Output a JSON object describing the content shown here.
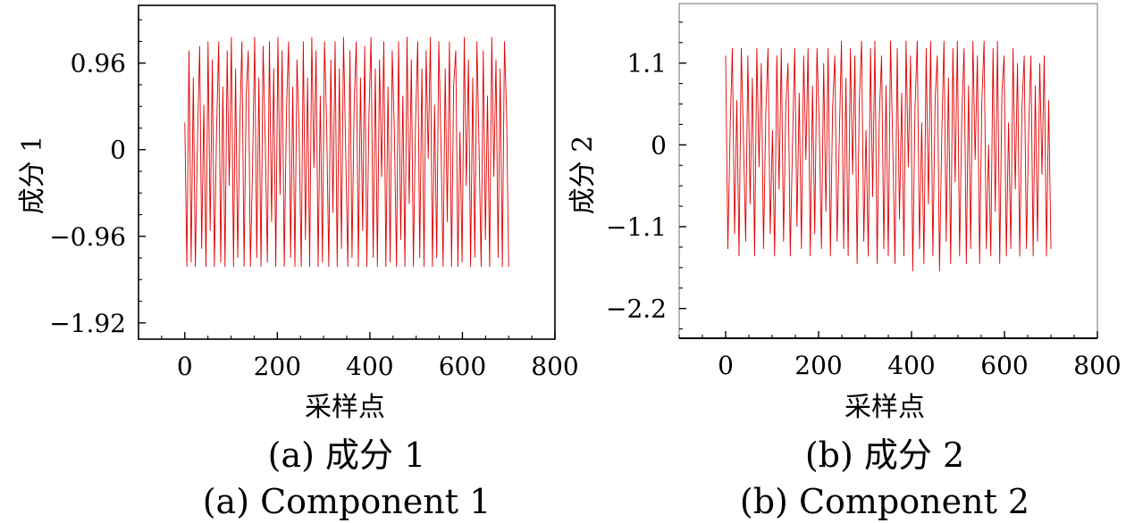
{
  "figure": {
    "panels": [
      {
        "caption_cn": "(a) 成分 1",
        "caption_en": "(a) Component 1"
      },
      {
        "caption_cn": "(b) 成分 2",
        "caption_en": "(b) Component 2"
      }
    ]
  },
  "chart_data": [
    {
      "type": "line",
      "title": "",
      "xlabel": "采样点",
      "ylabel": "成分 1",
      "xlim": [
        -100,
        800
      ],
      "ylim": [
        -2.1,
        1.6
      ],
      "x_ticks": [
        0,
        200,
        400,
        600,
        800
      ],
      "x_tick_labels": [
        "0",
        "200",
        "400",
        "600",
        "800"
      ],
      "y_ticks": [
        0.96,
        0,
        -0.96,
        -1.92
      ],
      "y_tick_labels": [
        "0.96",
        "0",
        "−0.96",
        "−1.92"
      ],
      "grid": false,
      "series_color": "#e00000",
      "series": [
        {
          "name": "",
          "x_start": 0,
          "x_end": 700,
          "values": [
            0.3,
            -1.3,
            1.1,
            -1.25,
            0.8,
            -1.3,
            0.1,
            1.15,
            -1.1,
            0.5,
            -1.3,
            1.2,
            -0.9,
            1.0,
            -1.3,
            0.2,
            1.2,
            -1.25,
            0.7,
            -1.3,
            1.1,
            -0.4,
            1.25,
            -1.3,
            0.9,
            -1.2,
            0.3,
            1.2,
            -1.3,
            0.6,
            1.1,
            -1.3,
            -0.2,
            1.25,
            -1.2,
            0.8,
            -1.3,
            1.15,
            0.1,
            -1.25,
            1.2,
            -0.8,
            0.9,
            -1.3,
            1.25,
            -0.5,
            1.1,
            -1.3,
            0.4,
            1.2,
            -1.2,
            0.7,
            -1.3,
            1.0,
            0.2,
            -1.3,
            1.2,
            -1.0,
            0.8,
            -1.3,
            1.25,
            -0.2,
            1.1,
            -1.3,
            0.6,
            -1.25,
            1.2,
            0.3,
            -1.3,
            1.0,
            -0.7,
            1.2,
            -1.3,
            0.9,
            -1.1,
            1.25,
            0.0,
            -1.3,
            1.1,
            -1.2,
            0.5,
            1.2,
            -1.3,
            0.8,
            -0.9,
            1.15,
            -1.3,
            0.4,
            1.25,
            -1.2,
            0.9,
            -1.3,
            1.0,
            -0.3,
            1.2,
            -1.3,
            0.7,
            -1.25,
            1.1,
            0.2,
            -1.3,
            1.2,
            -1.0,
            0.6,
            -1.3,
            1.25,
            -0.6,
            1.0,
            -1.3,
            0.3,
            1.2,
            -1.2,
            0.9,
            -1.3,
            1.1,
            -0.1,
            1.25,
            -1.3,
            0.5,
            -1.2,
            1.2,
            0.1,
            -1.3,
            0.9,
            -0.8,
            1.2,
            -1.3,
            0.7,
            1.1,
            -1.3,
            0.2,
            -1.25,
            1.25,
            -0.4,
            1.0,
            -1.3,
            0.8,
            -1.2,
            1.2,
            0.0,
            -1.3,
            1.1,
            -1.0,
            0.6,
            -1.3,
            1.25,
            -0.3,
            1.0,
            -1.2,
            0.9,
            -1.3,
            1.2,
            0.4,
            -1.3
          ]
        }
      ]
    },
    {
      "type": "line",
      "title": "",
      "xlabel": "采样点",
      "ylabel": "成分 2",
      "xlim": [
        -100,
        800
      ],
      "ylim": [
        -2.6,
        1.9
      ],
      "x_ticks": [
        0,
        200,
        400,
        600,
        800
      ],
      "x_tick_labels": [
        "0",
        "200",
        "400",
        "600",
        "800"
      ],
      "y_ticks": [
        1.1,
        0,
        -1.1,
        -2.2
      ],
      "y_tick_labels": [
        "1.1",
        "0",
        "−1.1",
        "−2.2"
      ],
      "grid": false,
      "series_color": "#e00000",
      "series": [
        {
          "name": "",
          "x_start": 0,
          "x_end": 700,
          "values": [
            1.2,
            -1.4,
            0.2,
            1.3,
            -1.2,
            0.6,
            -1.5,
            1.3,
            0.1,
            -1.3,
            1.2,
            -0.8,
            0.9,
            -1.5,
            1.3,
            -0.3,
            1.1,
            -1.4,
            0.4,
            1.3,
            -1.2,
            0.2,
            -1.5,
            1.2,
            -0.6,
            1.3,
            -1.3,
            0.5,
            1.1,
            -1.5,
            0.0,
            1.3,
            -1.1,
            0.7,
            -1.4,
            1.2,
            -0.2,
            1.3,
            -1.5,
            0.8,
            -1.2,
            1.3,
            0.3,
            -1.4,
            1.1,
            -0.9,
            1.3,
            -1.5,
            0.5,
            1.2,
            -1.3,
            0.1,
            1.4,
            -1.4,
            0.9,
            -1.5,
            1.3,
            -0.4,
            1.2,
            -1.6,
            0.6,
            1.4,
            -1.3,
            0.2,
            -1.5,
            1.3,
            -0.7,
            1.4,
            -1.6,
            0.4,
            1.2,
            -1.4,
            0.8,
            -1.5,
            1.4,
            0.0,
            -1.6,
            1.3,
            -1.0,
            0.7,
            -1.5,
            1.4,
            -0.3,
            1.2,
            -1.7,
            0.5,
            1.4,
            -1.4,
            0.3,
            -1.6,
            1.3,
            -0.8,
            1.4,
            -1.5,
            0.6,
            1.2,
            -1.7,
            0.1,
            1.4,
            -1.3,
            0.9,
            -1.6,
            1.3,
            -0.5,
            1.4,
            -1.5,
            0.4,
            1.3,
            -1.6,
            0.8,
            -1.4,
            1.4,
            -0.2,
            1.2,
            -1.6,
            0.6,
            1.4,
            -1.4,
            0.0,
            -1.5,
            1.3,
            -0.9,
            1.4,
            -1.6,
            0.7,
            1.2,
            -1.5,
            0.3,
            -1.4,
            1.3,
            -0.6,
            1.1,
            -1.5,
            0.5,
            1.2,
            -1.4,
            0.2,
            1.2,
            -1.5,
            0.8,
            -1.3,
            1.1,
            -0.4,
            1.2,
            -1.5,
            0.6,
            -1.4
          ]
        }
      ]
    }
  ]
}
